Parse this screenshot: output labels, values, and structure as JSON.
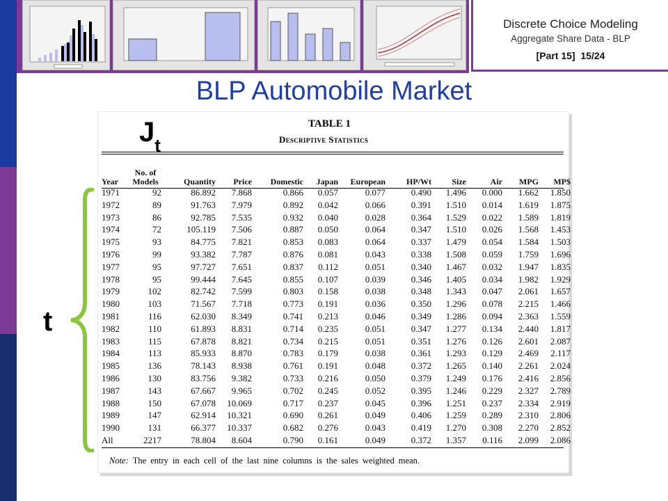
{
  "header": {
    "course": "Discrete Choice Modeling",
    "subtitle": "Aggregate Share Data - BLP",
    "part": "[Part 15]",
    "page": "15/24"
  },
  "title": "BLP Automobile Market",
  "jt_label": "J",
  "jt_sub": "t",
  "t_label": "t",
  "table": {
    "caption": "TABLE 1",
    "subcaption": "Descriptive Statistics",
    "headers": [
      [
        "Year"
      ],
      [
        "No. of",
        "Models"
      ],
      [
        "Quantity"
      ],
      [
        "Price"
      ],
      [
        "Domestic"
      ],
      [
        "Japan"
      ],
      [
        "European"
      ],
      [
        "HP/Wt"
      ],
      [
        "Size"
      ],
      [
        "Air"
      ],
      [
        "MPG"
      ],
      [
        "MP$"
      ]
    ],
    "rows": [
      [
        "1971",
        "92",
        "86.892",
        "7.868",
        "0.866",
        "0.057",
        "0.077",
        "0.490",
        "1.496",
        "0.000",
        "1.662",
        "1.850"
      ],
      [
        "1972",
        "89",
        "91.763",
        "7.979",
        "0.892",
        "0.042",
        "0.066",
        "0.391",
        "1.510",
        "0.014",
        "1.619",
        "1.875"
      ],
      [
        "1973",
        "86",
        "92.785",
        "7.535",
        "0.932",
        "0.040",
        "0.028",
        "0.364",
        "1.529",
        "0.022",
        "1.589",
        "1.819"
      ],
      [
        "1974",
        "72",
        "105.119",
        "7.506",
        "0.887",
        "0.050",
        "0.064",
        "0.347",
        "1.510",
        "0.026",
        "1.568",
        "1.453"
      ],
      [
        "1975",
        "93",
        "84.775",
        "7.821",
        "0.853",
        "0.083",
        "0.064",
        "0.337",
        "1.479",
        "0.054",
        "1.584",
        "1.503"
      ],
      [
        "1976",
        "99",
        "93.382",
        "7.787",
        "0.876",
        "0.081",
        "0.043",
        "0.338",
        "1.508",
        "0.059",
        "1.759",
        "1.696"
      ],
      [
        "1977",
        "95",
        "97.727",
        "7.651",
        "0.837",
        "0.112",
        "0.051",
        "0.340",
        "1.467",
        "0.032",
        "1.947",
        "1.835"
      ],
      [
        "1978",
        "95",
        "99.444",
        "7.645",
        "0.855",
        "0.107",
        "0.039",
        "0.346",
        "1.405",
        "0.034",
        "1.982",
        "1.929"
      ],
      [
        "1979",
        "102",
        "82.742",
        "7.599",
        "0.803",
        "0.158",
        "0.038",
        "0.348",
        "1.343",
        "0.047",
        "2.061",
        "1.657"
      ],
      [
        "1980",
        "103",
        "71.567",
        "7.718",
        "0.773",
        "0.191",
        "0.036",
        "0.350",
        "1.296",
        "0.078",
        "2.215",
        "1.466"
      ],
      [
        "1981",
        "116",
        "62.030",
        "8.349",
        "0.741",
        "0.213",
        "0.046",
        "0.349",
        "1.286",
        "0.094",
        "2.363",
        "1.559"
      ],
      [
        "1982",
        "110",
        "61.893",
        "8.831",
        "0.714",
        "0.235",
        "0.051",
        "0.347",
        "1.277",
        "0.134",
        "2.440",
        "1.817"
      ],
      [
        "1983",
        "115",
        "67.878",
        "8.821",
        "0.734",
        "0.215",
        "0.051",
        "0.351",
        "1.276",
        "0.126",
        "2.601",
        "2.087"
      ],
      [
        "1984",
        "113",
        "85.933",
        "8.870",
        "0.783",
        "0.179",
        "0.038",
        "0.361",
        "1.293",
        "0.129",
        "2.469",
        "2.117"
      ],
      [
        "1985",
        "136",
        "78.143",
        "8.938",
        "0.761",
        "0.191",
        "0.048",
        "0.372",
        "1.265",
        "0.140",
        "2.261",
        "2.024"
      ],
      [
        "1986",
        "130",
        "83.756",
        "9.382",
        "0.733",
        "0.216",
        "0.050",
        "0.379",
        "1.249",
        "0.176",
        "2.416",
        "2.856"
      ],
      [
        "1987",
        "143",
        "67.667",
        "9.965",
        "0.702",
        "0.245",
        "0.052",
        "0.395",
        "1.246",
        "0.229",
        "2.327",
        "2.789"
      ],
      [
        "1988",
        "150",
        "67.078",
        "10.069",
        "0.717",
        "0.237",
        "0.045",
        "0.396",
        "1.251",
        "0.237",
        "2.334",
        "2.919"
      ],
      [
        "1989",
        "147",
        "62.914",
        "10.321",
        "0.690",
        "0.261",
        "0.049",
        "0.406",
        "1.259",
        "0.289",
        "2.310",
        "2.806"
      ],
      [
        "1990",
        "131",
        "66.377",
        "10.337",
        "0.682",
        "0.276",
        "0.043",
        "0.419",
        "1.270",
        "0.308",
        "2.270",
        "2.852"
      ],
      [
        "All",
        "2217",
        "78.804",
        "8.604",
        "0.790",
        "0.161",
        "0.049",
        "0.372",
        "1.357",
        "0.116",
        "2.099",
        "2.086"
      ]
    ],
    "note_label": "Note:",
    "note_text": "The entry in each cell of the last nine columns is the sales weighted mean."
  },
  "colors": {
    "title": "#1f3ea6",
    "accent": "#7b3a96",
    "bar_blue": "#1a3aa0",
    "brace": "#8cc63f"
  }
}
